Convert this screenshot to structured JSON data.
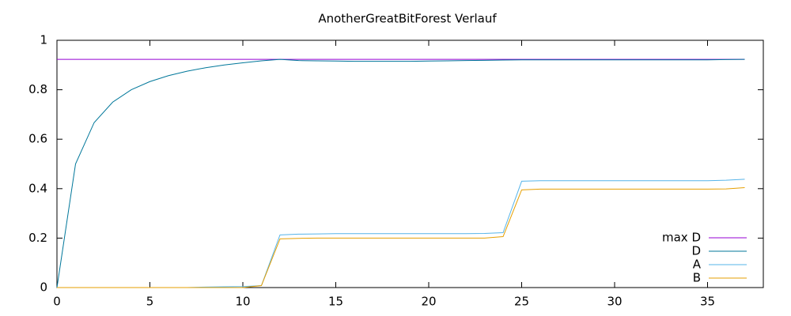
{
  "chart_data": {
    "type": "line",
    "title": "AnotherGreatBitForest Verlauf",
    "x": [
      0,
      1,
      2,
      3,
      4,
      5,
      6,
      7,
      8,
      9,
      10,
      11,
      12,
      13,
      14,
      15,
      16,
      17,
      18,
      19,
      20,
      21,
      22,
      23,
      24,
      25,
      26,
      27,
      28,
      29,
      30,
      31,
      32,
      33,
      34,
      35,
      36,
      37
    ],
    "series": [
      {
        "name": "max D",
        "color": "#9400d3",
        "values": [
          0.923,
          0.923,
          0.923,
          0.923,
          0.923,
          0.923,
          0.923,
          0.923,
          0.923,
          0.923,
          0.923,
          0.923,
          0.923,
          0.923,
          0.923,
          0.923,
          0.923,
          0.923,
          0.923,
          0.923,
          0.923,
          0.923,
          0.923,
          0.923,
          0.923,
          0.923,
          0.923,
          0.923,
          0.923,
          0.923,
          0.923,
          0.923,
          0.923,
          0.923,
          0.923,
          0.923,
          0.923,
          0.923
        ]
      },
      {
        "name": "D",
        "color": "#00779a",
        "values": [
          0,
          0.5,
          0.667,
          0.75,
          0.8,
          0.833,
          0.857,
          0.875,
          0.889,
          0.9,
          0.909,
          0.917,
          0.923,
          0.918,
          0.917,
          0.916,
          0.915,
          0.915,
          0.915,
          0.915,
          0.916,
          0.917,
          0.918,
          0.919,
          0.92,
          0.921,
          0.921,
          0.921,
          0.921,
          0.921,
          0.921,
          0.921,
          0.921,
          0.921,
          0.921,
          0.921,
          0.922,
          0.923
        ]
      },
      {
        "name": "A",
        "color": "#56b4e9",
        "values": [
          0,
          0,
          0,
          0,
          0,
          0,
          0,
          0,
          0.002,
          0.003,
          0.004,
          0.008,
          0.213,
          0.216,
          0.217,
          0.218,
          0.218,
          0.218,
          0.218,
          0.218,
          0.218,
          0.218,
          0.218,
          0.219,
          0.222,
          0.43,
          0.432,
          0.432,
          0.432,
          0.432,
          0.432,
          0.432,
          0.432,
          0.432,
          0.432,
          0.432,
          0.434,
          0.438
        ]
      },
      {
        "name": "B",
        "color": "#e69f00",
        "values": [
          0,
          0,
          0,
          0,
          0,
          0,
          0,
          0,
          0,
          0,
          0,
          0.008,
          0.197,
          0.199,
          0.2,
          0.2,
          0.2,
          0.2,
          0.2,
          0.2,
          0.2,
          0.2,
          0.2,
          0.2,
          0.206,
          0.395,
          0.398,
          0.398,
          0.398,
          0.398,
          0.398,
          0.398,
          0.398,
          0.398,
          0.398,
          0.398,
          0.399,
          0.404
        ]
      }
    ],
    "xlim": [
      0,
      38
    ],
    "xticks": [
      0,
      5,
      10,
      15,
      20,
      25,
      30,
      35
    ],
    "ylim": [
      0,
      1
    ],
    "yticks": [
      0,
      0.2,
      0.4,
      0.6,
      0.8,
      1
    ],
    "legend": "bottom right"
  }
}
